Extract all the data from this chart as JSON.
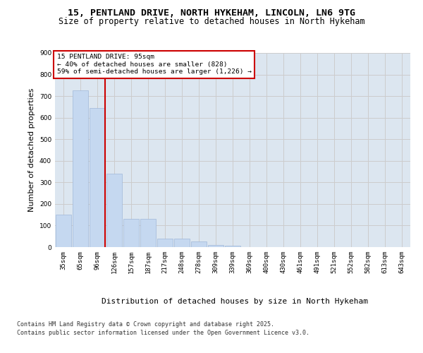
{
  "title_line1": "15, PENTLAND DRIVE, NORTH HYKEHAM, LINCOLN, LN6 9TG",
  "title_line2": "Size of property relative to detached houses in North Hykeham",
  "xlabel": "Distribution of detached houses by size in North Hykeham",
  "ylabel": "Number of detached properties",
  "categories": [
    "35sqm",
    "65sqm",
    "96sqm",
    "126sqm",
    "157sqm",
    "187sqm",
    "217sqm",
    "248sqm",
    "278sqm",
    "309sqm",
    "339sqm",
    "369sqm",
    "400sqm",
    "430sqm",
    "461sqm",
    "491sqm",
    "521sqm",
    "552sqm",
    "582sqm",
    "613sqm",
    "643sqm"
  ],
  "bar_heights": [
    150,
    725,
    645,
    340,
    130,
    130,
    40,
    40,
    25,
    10,
    5,
    0,
    0,
    0,
    0,
    0,
    0,
    0,
    0,
    0,
    0
  ],
  "bar_color": "#c5d8f0",
  "bar_edge_color": "#a0b8d8",
  "grid_color": "#cccccc",
  "bg_color": "#dce6f0",
  "annotation_box_text": "15 PENTLAND DRIVE: 95sqm\n← 40% of detached houses are smaller (828)\n59% of semi-detached houses are larger (1,226) →",
  "annotation_box_color": "#cc0000",
  "vline_x_index": 2,
  "vline_color": "#cc0000",
  "ylim": [
    0,
    900
  ],
  "yticks": [
    0,
    100,
    200,
    300,
    400,
    500,
    600,
    700,
    800,
    900
  ],
  "footer_line1": "Contains HM Land Registry data © Crown copyright and database right 2025.",
  "footer_line2": "Contains public sector information licensed under the Open Government Licence v3.0.",
  "title_fontsize": 9.5,
  "subtitle_fontsize": 8.5,
  "tick_fontsize": 6.5,
  "label_fontsize": 8,
  "footer_fontsize": 6,
  "annot_fontsize": 6.8
}
